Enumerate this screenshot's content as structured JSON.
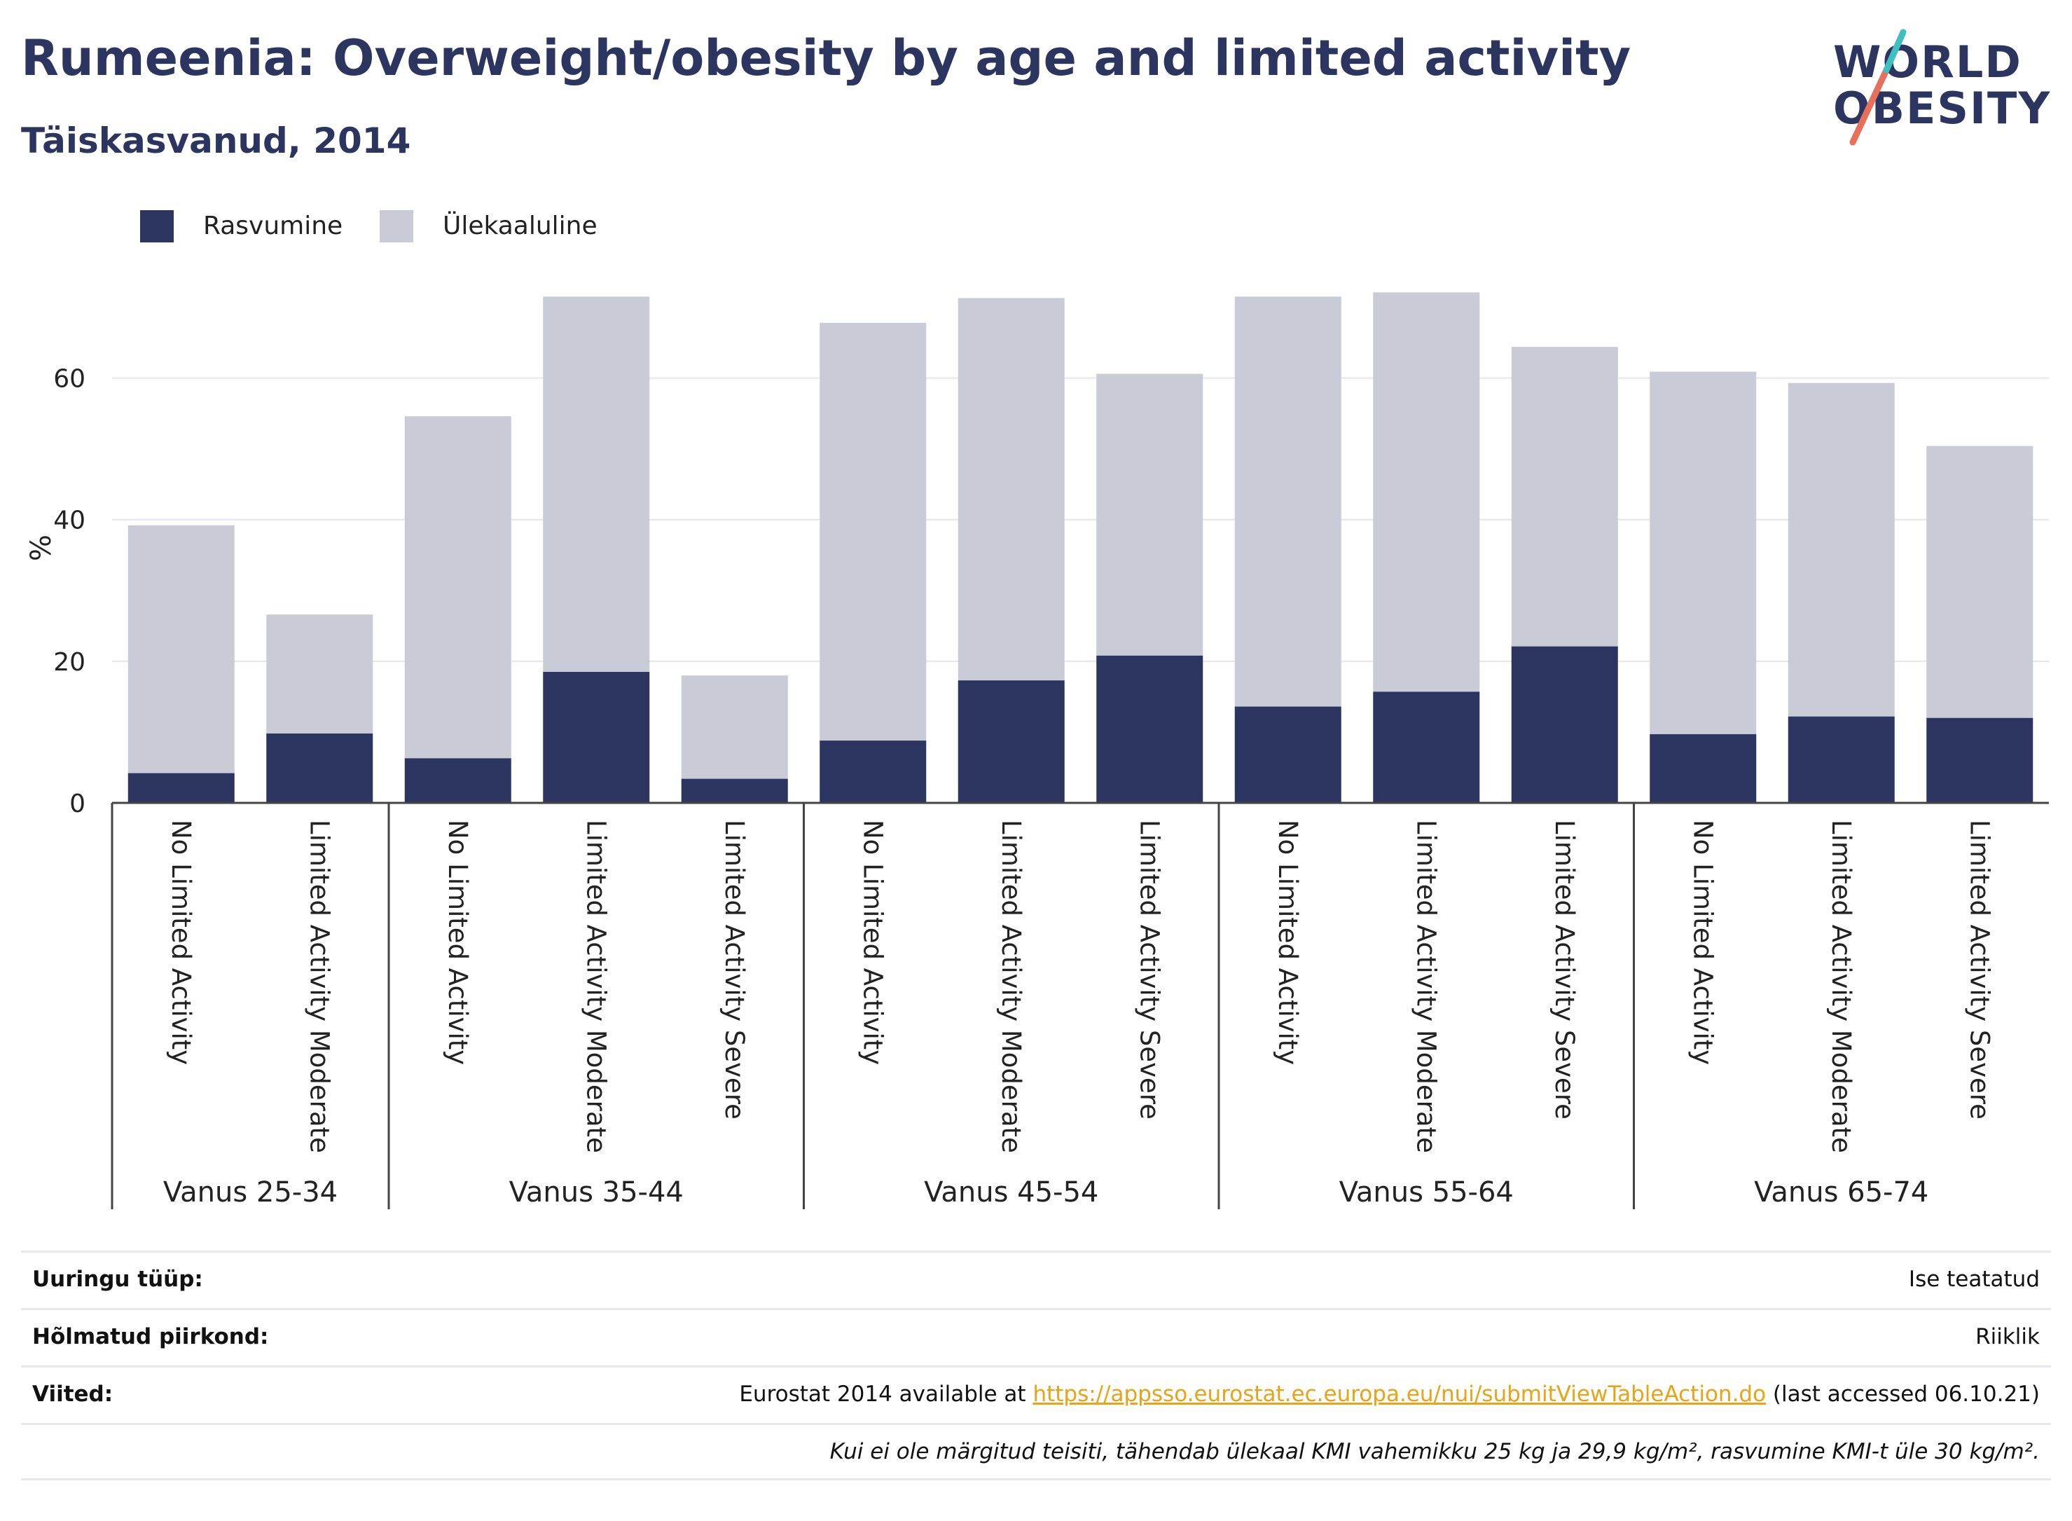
{
  "title": "Rumeenia: Overweight/obesity by age and limited activity",
  "subtitle": "Täiskasvanud, 2014",
  "logo": {
    "line1": "WORLD",
    "line2": "OBESITY"
  },
  "legend": [
    {
      "label": "Rasvumine",
      "color": "#2b3560"
    },
    {
      "label": "Ülekaaluline",
      "color": "#c9cbd7"
    }
  ],
  "chart_data": {
    "type": "bar",
    "stacked": true,
    "ylabel": "%",
    "ylim": [
      0,
      75
    ],
    "yticks": [
      0,
      20,
      40,
      60
    ],
    "grid": true,
    "legend_position": "top-left",
    "groups": [
      {
        "label": "Vanus 25-34",
        "categories": [
          "No Limited Activity",
          "Limited Activity Moderate"
        ]
      },
      {
        "label": "Vanus 35-44",
        "categories": [
          "No Limited Activity",
          "Limited Activity Moderate",
          "Limited Activity Severe"
        ]
      },
      {
        "label": "Vanus 45-54",
        "categories": [
          "No Limited Activity",
          "Limited Activity Moderate",
          "Limited Activity Severe"
        ]
      },
      {
        "label": "Vanus 55-64",
        "categories": [
          "No Limited Activity",
          "Limited Activity Moderate",
          "Limited Activity Severe"
        ]
      },
      {
        "label": "Vanus 65-74",
        "categories": [
          "No Limited Activity",
          "Limited Activity Moderate",
          "Limited Activity Severe"
        ]
      }
    ],
    "series": [
      {
        "name": "Rasvumine",
        "color": "#2b3560",
        "values": [
          4.2,
          9.8,
          6.3,
          18.5,
          3.4,
          8.8,
          17.3,
          20.8,
          13.6,
          15.7,
          22.1,
          9.7,
          12.2,
          12.0
        ]
      },
      {
        "name": "Ülekaaluline",
        "color": "#c9cbd7",
        "values": [
          35.0,
          16.8,
          48.3,
          53.0,
          14.6,
          59.0,
          54.0,
          39.8,
          57.9,
          56.4,
          42.3,
          51.2,
          47.1,
          38.4
        ]
      }
    ]
  },
  "info": {
    "survey_type_label": "Uuringu tüüp:",
    "survey_type_value": "Ise teatatud",
    "region_label": "Hõlmatud piirkond:",
    "region_value": "Riiklik",
    "refs_label": "Viited:",
    "refs_prefix": "Eurostat 2014 available at ",
    "refs_link": "https://appsso.eurostat.ec.europa.eu/nui/submitViewTableAction.do",
    "refs_suffix": " (last accessed 06.10.21)",
    "note": "Kui ei ole märgitud teisiti, tähendab ülekaal KMI vahemikku 25 kg ja 29,9 kg/m², rasvumine KMI-t üle 30 kg/m²."
  }
}
